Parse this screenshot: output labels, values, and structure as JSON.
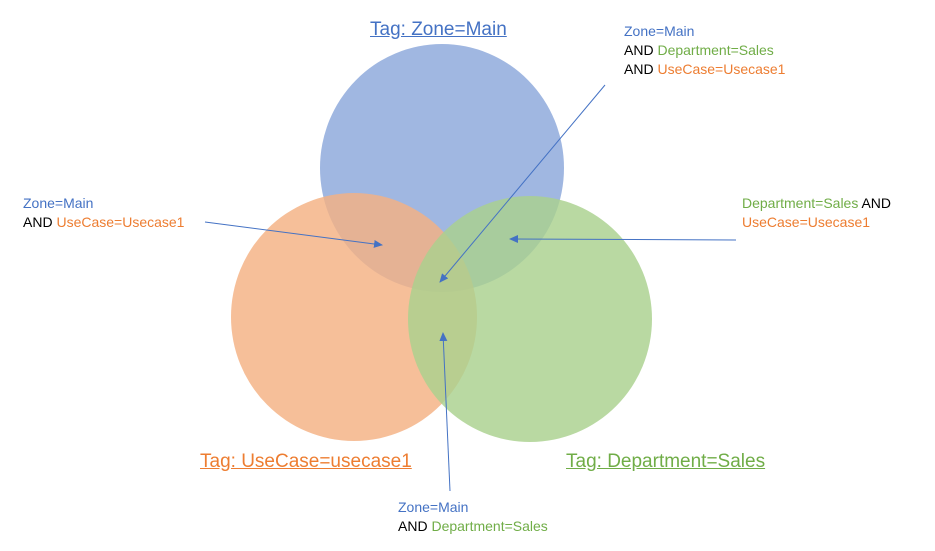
{
  "colors": {
    "blue": "#4472C4",
    "green": "#70AD47",
    "orange": "#ED7D31",
    "circle_blue": "#8FAADC",
    "circle_orange": "#F4B183",
    "circle_green": "#A9D18E",
    "arrow": "#4472C4"
  },
  "titles": {
    "zone": "Tag: Zone=Main",
    "usecase": "Tag: UseCase=usecase1",
    "department": "Tag: Department=Sales"
  },
  "callouts": {
    "all_three": {
      "line1": "Zone=Main",
      "and2": "AND ",
      "line2": "Department=Sales",
      "and3": "AND ",
      "line3": "UseCase=Usecase1"
    },
    "zone_usecase": {
      "line1": "Zone=Main",
      "and2": "AND ",
      "line2": "UseCase=Usecase1"
    },
    "dept_usecase": {
      "line1": "Department=Sales",
      "and1": " AND",
      "line2": "UseCase=Usecase1"
    },
    "zone_dept": {
      "line1": "Zone=Main",
      "and2": "AND ",
      "line2": "Department=Sales"
    }
  }
}
